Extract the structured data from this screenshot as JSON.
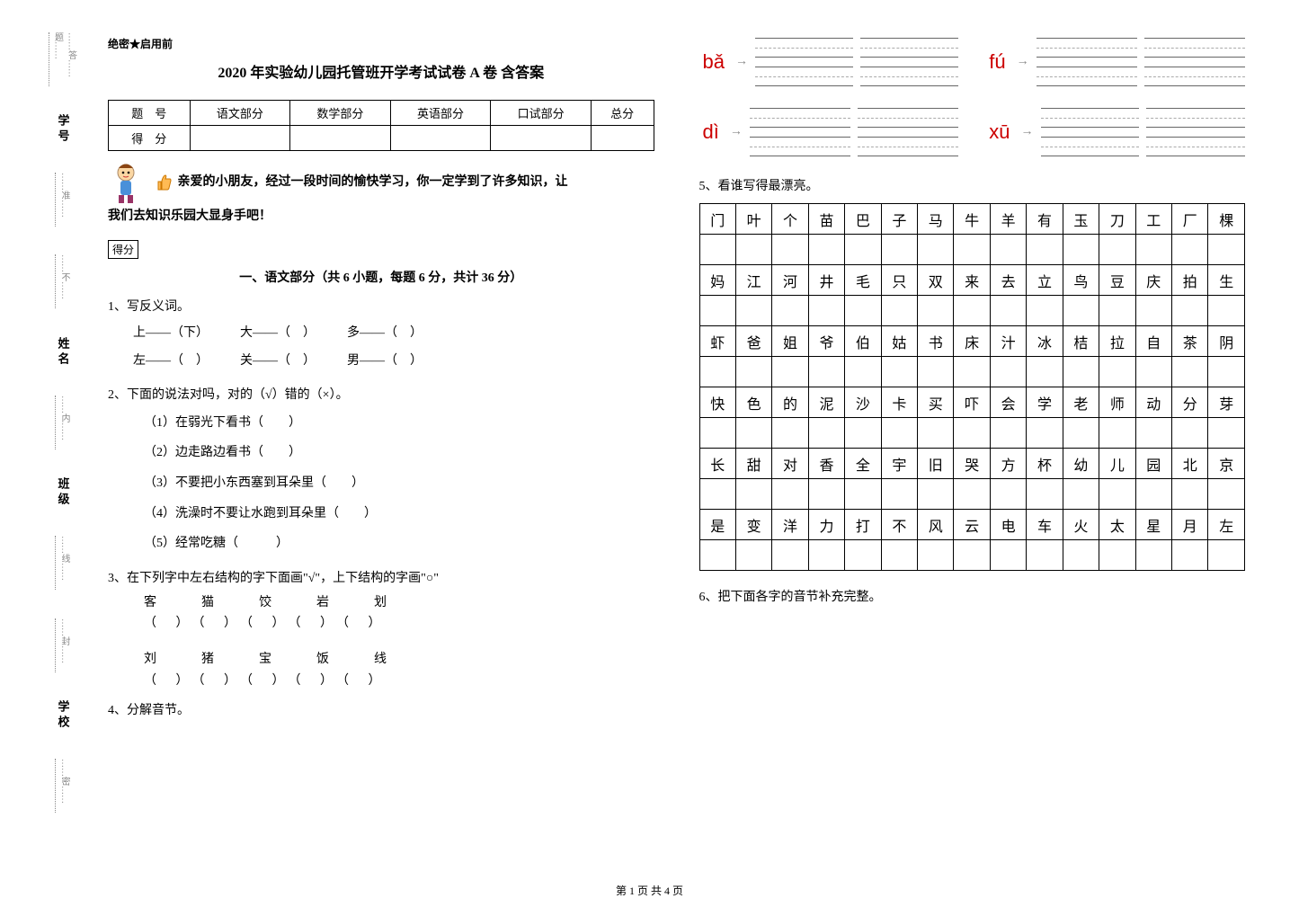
{
  "header_tag": "绝密★启用前",
  "title": "2020 年实验幼儿园托管班开学考试试卷 A 卷  含答案",
  "score_table": {
    "row1": [
      "题　号",
      "语文部分",
      "数学部分",
      "英语部分",
      "口试部分",
      "总分"
    ],
    "row2": [
      "得　分",
      "",
      "",
      "",
      "",
      ""
    ]
  },
  "intro_line1": "亲爱的小朋友，经过一段时间的愉快学习，你一定学到了许多知识，让",
  "intro_line2": "我们去知识乐园大显身手吧！",
  "score_box": "得分",
  "section1_title": "一、语文部分（共 6 小题，每题 6 分，共计 36 分）",
  "q1": {
    "num": "1、写反义词。",
    "lines": [
      "上——（下）　　　大——（　）　　　多——（　）",
      "左——（　）　　　关——（　）　　　男——（　）"
    ]
  },
  "q2": {
    "num": "2、下面的说法对吗，对的（√）错的（×）。",
    "items": [
      "（1）在弱光下看书（　　）",
      "（2）边走路边看书（　　）",
      "（3）不要把小东西塞到耳朵里（　　）",
      "（4）洗澡时不要让水跑到耳朵里（　　）",
      "（5）经常吃糖（　　　）"
    ]
  },
  "q3": {
    "num": "3、在下列字中左右结构的字下面画\"√\"，上下结构的字画\"○\"",
    "row1_chars": "客　猫　饺　岩　划",
    "row1_parens": "（ ）　（ ）　（ ）　（ ）　（ ）",
    "row2_chars": "刘　猪　宝　饭　线",
    "row2_parens": "（ ）　（ ）　（ ）　（ ）　（ ）"
  },
  "q4": "4、分解音节。",
  "pinyin": {
    "labels": [
      "bǎ",
      "fú",
      "dì",
      "xū"
    ]
  },
  "q5": "5、看谁写得最漂亮。",
  "grid_rows": [
    [
      "门",
      "叶",
      "个",
      "苗",
      "巴",
      "子",
      "马",
      "牛",
      "羊",
      "有",
      "玉",
      "刀",
      "工",
      "厂",
      "棵"
    ],
    [
      "妈",
      "江",
      "河",
      "井",
      "毛",
      "只",
      "双",
      "来",
      "去",
      "立",
      "鸟",
      "豆",
      "庆",
      "拍",
      "生"
    ],
    [
      "虾",
      "爸",
      "姐",
      "爷",
      "伯",
      "姑",
      "书",
      "床",
      "汁",
      "冰",
      "桔",
      "拉",
      "自",
      "茶",
      "阴"
    ],
    [
      "快",
      "色",
      "的",
      "泥",
      "沙",
      "卡",
      "买",
      "吓",
      "会",
      "学",
      "老",
      "师",
      "动",
      "分",
      "芽"
    ],
    [
      "长",
      "甜",
      "对",
      "香",
      "全",
      "宇",
      "旧",
      "哭",
      "方",
      "杯",
      "幼",
      "儿",
      "园",
      "北",
      "京"
    ],
    [
      "是",
      "变",
      "洋",
      "力",
      "打",
      "不",
      "风",
      "云",
      "电",
      "车",
      "火",
      "太",
      "星",
      "月",
      "左"
    ]
  ],
  "q6": "6、把下面各字的音节补充完整。",
  "footer": "第 1 页 共 4 页",
  "vlabels": [
    "学号",
    "姓名",
    "班级",
    "学校"
  ],
  "vline_texts": [
    "……答……题……",
    "……准……",
    "……不……",
    "……内……",
    "……线……",
    "……封……",
    "……密……"
  ]
}
